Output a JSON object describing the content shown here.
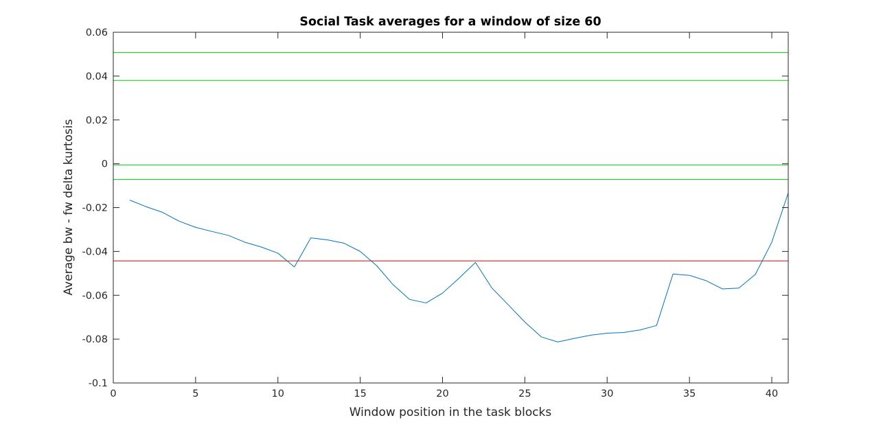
{
  "chart_data": {
    "type": "line",
    "title": "Social Task averages for a window of size 60",
    "xlabel": "Window position in the task blocks",
    "ylabel": "Average bw - fw delta kurtosis",
    "xlim": [
      0,
      41
    ],
    "ylim": [
      -0.1,
      0.06
    ],
    "xticks": [
      0,
      5,
      10,
      15,
      20,
      25,
      30,
      35,
      40
    ],
    "xtick_labels": [
      "0",
      "5",
      "10",
      "15",
      "20",
      "25",
      "30",
      "35",
      "40"
    ],
    "yticks": [
      -0.1,
      -0.08,
      -0.06,
      -0.04,
      -0.02,
      0,
      0.02,
      0.04,
      0.06
    ],
    "ytick_labels": [
      "-0.1",
      "-0.08",
      "-0.06",
      "-0.04",
      "-0.02",
      "0",
      "0.02",
      "0.04",
      "0.06"
    ],
    "grid": false,
    "series": [
      {
        "color": "#0072bd",
        "x": [
          1,
          2,
          3,
          4,
          5,
          6,
          7,
          8,
          9,
          10,
          11,
          12,
          13,
          14,
          15,
          16,
          17,
          18,
          19,
          20,
          21,
          22,
          23,
          24,
          25,
          26,
          27,
          28,
          29,
          30,
          31,
          32,
          33,
          34,
          35,
          36,
          37,
          38,
          39,
          40,
          41
        ],
        "y": [
          -0.0166,
          -0.0196,
          -0.0222,
          -0.0262,
          -0.029,
          -0.0309,
          -0.0327,
          -0.0358,
          -0.038,
          -0.0408,
          -0.0471,
          -0.0338,
          -0.0347,
          -0.0362,
          -0.04,
          -0.0465,
          -0.0552,
          -0.0619,
          -0.0635,
          -0.059,
          -0.0522,
          -0.045,
          -0.0567,
          -0.0644,
          -0.0722,
          -0.079,
          -0.0813,
          -0.0797,
          -0.0782,
          -0.0773,
          -0.077,
          -0.0758,
          -0.0738,
          -0.0503,
          -0.0509,
          -0.0533,
          -0.0571,
          -0.0567,
          -0.0505,
          -0.0358,
          -0.0133
        ]
      }
    ],
    "reference_lines": [
      {
        "y": 0.0508,
        "color": "#00cc00"
      },
      {
        "y": 0.038,
        "color": "#00cc00"
      },
      {
        "y": -0.0005,
        "color": "#00cc00"
      },
      {
        "y": -0.0072,
        "color": "#00cc00"
      },
      {
        "y": -0.0443,
        "color": "#dd0000"
      }
    ]
  }
}
